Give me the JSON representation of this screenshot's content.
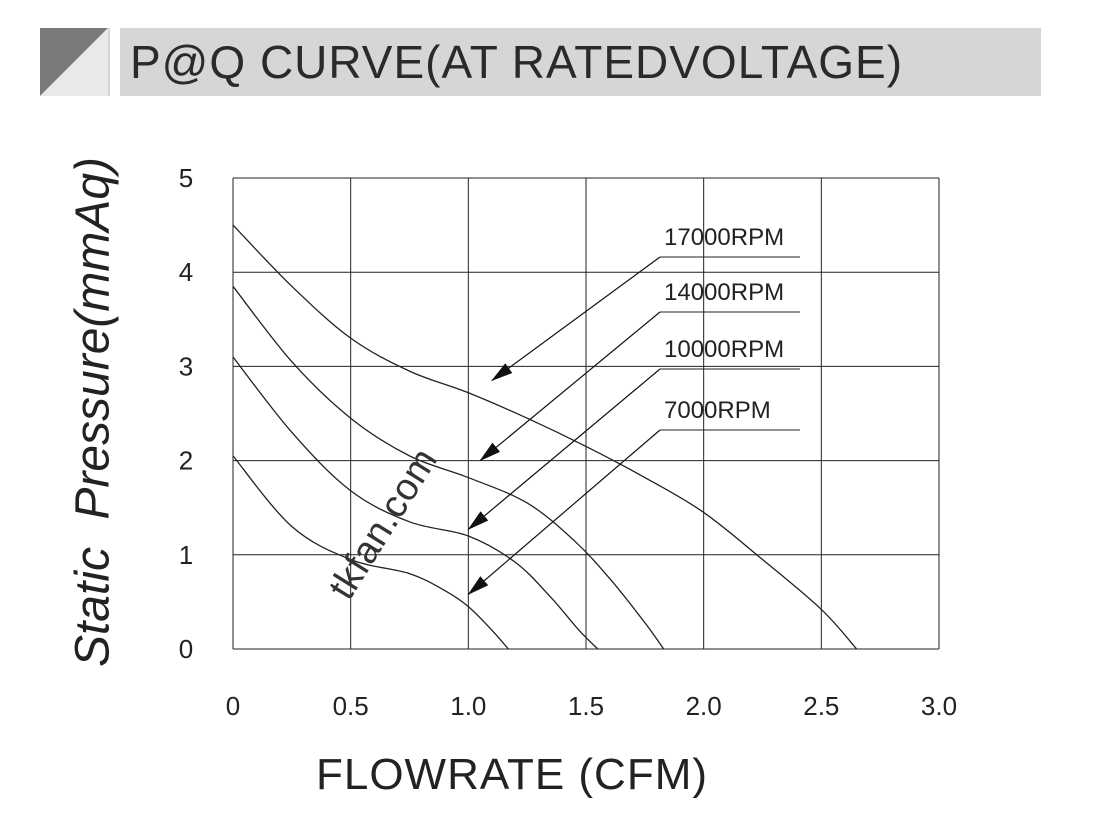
{
  "header": {
    "title": "P@Q CURVE(AT RATEDVOLTAGE)"
  },
  "watermark": "tkfan.com",
  "chart_data": {
    "type": "line",
    "xlabel": "FLOWRATE (CFM)",
    "ylabel": "Static  Pressure(mmAq)",
    "xlim": [
      0,
      3.0
    ],
    "ylim": [
      0,
      5
    ],
    "x_ticks": [
      "0",
      "0.5",
      "1.0",
      "1.5",
      "2.0",
      "2.5",
      "3.0"
    ],
    "y_ticks": [
      "0",
      "1",
      "2",
      "3",
      "4",
      "5"
    ],
    "grid": true,
    "series": [
      {
        "name": "17000RPM",
        "x": [
          0,
          0.25,
          0.5,
          0.75,
          1.0,
          1.25,
          1.5,
          1.75,
          2.0,
          2.25,
          2.5,
          2.65
        ],
        "y": [
          4.5,
          3.85,
          3.3,
          2.95,
          2.72,
          2.45,
          2.15,
          1.82,
          1.45,
          0.95,
          0.42,
          0
        ]
      },
      {
        "name": "14000RPM",
        "x": [
          0,
          0.25,
          0.5,
          0.75,
          1.0,
          1.25,
          1.45,
          1.6,
          1.75,
          1.83
        ],
        "y": [
          3.85,
          3.05,
          2.45,
          2.05,
          1.82,
          1.55,
          1.15,
          0.75,
          0.28,
          0
        ]
      },
      {
        "name": "10000RPM",
        "x": [
          0,
          0.25,
          0.5,
          0.75,
          1.0,
          1.2,
          1.35,
          1.47,
          1.55
        ],
        "y": [
          3.1,
          2.3,
          1.68,
          1.35,
          1.2,
          0.92,
          0.55,
          0.2,
          0
        ]
      },
      {
        "name": "7000RPM",
        "x": [
          0,
          0.25,
          0.5,
          0.75,
          0.9,
          1.0,
          1.1,
          1.17
        ],
        "y": [
          2.05,
          1.3,
          0.95,
          0.8,
          0.62,
          0.45,
          0.2,
          0
        ]
      }
    ],
    "annotations": [
      {
        "label": "17000RPM",
        "point": [
          1.1,
          2.85
        ]
      },
      {
        "label": "14000RPM",
        "point": [
          1.05,
          2.0
        ]
      },
      {
        "label": "10000RPM",
        "point": [
          1.0,
          1.27
        ]
      },
      {
        "label": "7000RPM",
        "point": [
          1.0,
          0.58
        ]
      }
    ]
  }
}
